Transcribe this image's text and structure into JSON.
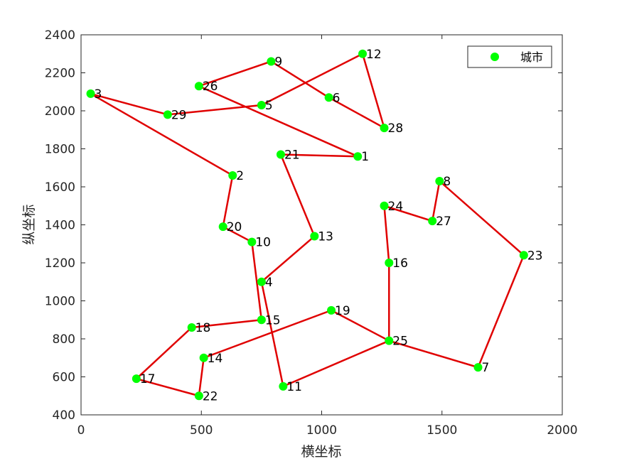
{
  "chart_data": {
    "type": "line",
    "title": "",
    "xlabel": "横坐标",
    "ylabel": "纵坐标",
    "xlim": [
      0,
      2000
    ],
    "ylim": [
      400,
      2400
    ],
    "x_ticks": [
      "0",
      "500",
      "1000",
      "1500",
      "2000"
    ],
    "y_ticks": [
      "400",
      "600",
      "800",
      "1000",
      "1200",
      "1400",
      "1600",
      "1800",
      "2000",
      "2200",
      "2400"
    ],
    "grid": false,
    "legend": {
      "position": "top-right",
      "entries": [
        "城市"
      ]
    },
    "colors": {
      "point": "#00ff00",
      "route": "#e00000",
      "axis": "#262626"
    },
    "series": [
      {
        "name": "城市",
        "points": [
          {
            "id": "1",
            "x": 1150,
            "y": 1760
          },
          {
            "id": "2",
            "x": 630,
            "y": 1660
          },
          {
            "id": "3",
            "x": 40,
            "y": 2090
          },
          {
            "id": "4",
            "x": 750,
            "y": 1100
          },
          {
            "id": "5",
            "x": 750,
            "y": 2030
          },
          {
            "id": "6",
            "x": 1030,
            "y": 2070
          },
          {
            "id": "7",
            "x": 1650,
            "y": 650
          },
          {
            "id": "8",
            "x": 1490,
            "y": 1630
          },
          {
            "id": "9",
            "x": 790,
            "y": 2260
          },
          {
            "id": "10",
            "x": 710,
            "y": 1310
          },
          {
            "id": "11",
            "x": 840,
            "y": 550
          },
          {
            "id": "12",
            "x": 1170,
            "y": 2300
          },
          {
            "id": "13",
            "x": 970,
            "y": 1340
          },
          {
            "id": "14",
            "x": 510,
            "y": 700
          },
          {
            "id": "15",
            "x": 750,
            "y": 900
          },
          {
            "id": "16",
            "x": 1280,
            "y": 1200
          },
          {
            "id": "17",
            "x": 230,
            "y": 590
          },
          {
            "id": "18",
            "x": 460,
            "y": 860
          },
          {
            "id": "19",
            "x": 1040,
            "y": 950
          },
          {
            "id": "20",
            "x": 590,
            "y": 1390
          },
          {
            "id": "21",
            "x": 830,
            "y": 1770
          },
          {
            "id": "22",
            "x": 490,
            "y": 500
          },
          {
            "id": "23",
            "x": 1840,
            "y": 1240
          },
          {
            "id": "24",
            "x": 1260,
            "y": 1500
          },
          {
            "id": "25",
            "x": 1280,
            "y": 790
          },
          {
            "id": "26",
            "x": 490,
            "y": 2130
          },
          {
            "id": "27",
            "x": 1460,
            "y": 1420
          },
          {
            "id": "28",
            "x": 1260,
            "y": 1910
          },
          {
            "id": "29",
            "x": 360,
            "y": 1980
          }
        ]
      }
    ],
    "route": [
      "1",
      "21",
      "13",
      "4",
      "11",
      "25",
      "7",
      "23",
      "8",
      "27",
      "24",
      "16",
      "25",
      "19",
      "14",
      "22",
      "17",
      "18",
      "15",
      "10",
      "20",
      "2",
      "3",
      "29",
      "5",
      "12",
      "28",
      "6",
      "9",
      "26",
      "1"
    ]
  }
}
